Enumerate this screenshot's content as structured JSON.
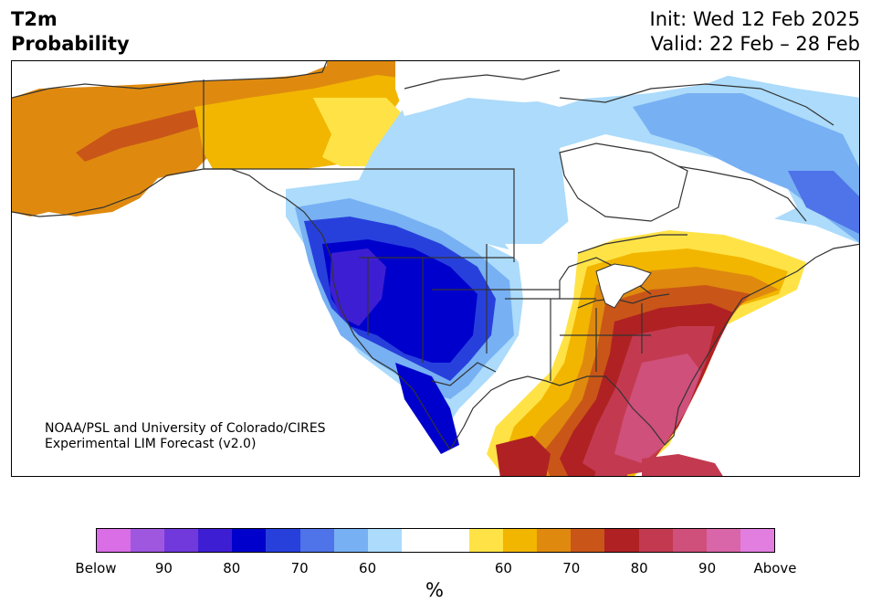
{
  "header": {
    "title_line1": "T2m",
    "title_line2": "Probability",
    "init": "Init: Wed 12 Feb 2025",
    "valid": "Valid: 22 Feb – 28 Feb"
  },
  "credit": {
    "line1": "NOAA/PSL and University of Colorado/CIRES",
    "line2": "Experimental LIM Forecast (v2.0)"
  },
  "colorbar": {
    "colors": [
      "#d96ee6",
      "#a057e0",
      "#7139db",
      "#3e1ed3",
      "#0000cc",
      "#2740dc",
      "#4f73e8",
      "#77b0f3",
      "#acdbfb",
      "#ffffff",
      "#ffffff",
      "#ffe346",
      "#f2b600",
      "#df8a0f",
      "#c95618",
      "#b02123",
      "#c33a50",
      "#cf507a",
      "#d966a8",
      "#e27ee0"
    ],
    "ticks": [
      "Below",
      "90",
      "80",
      "70",
      "60",
      "60",
      "70",
      "80",
      "90",
      "Above"
    ],
    "unit": "%"
  }
}
